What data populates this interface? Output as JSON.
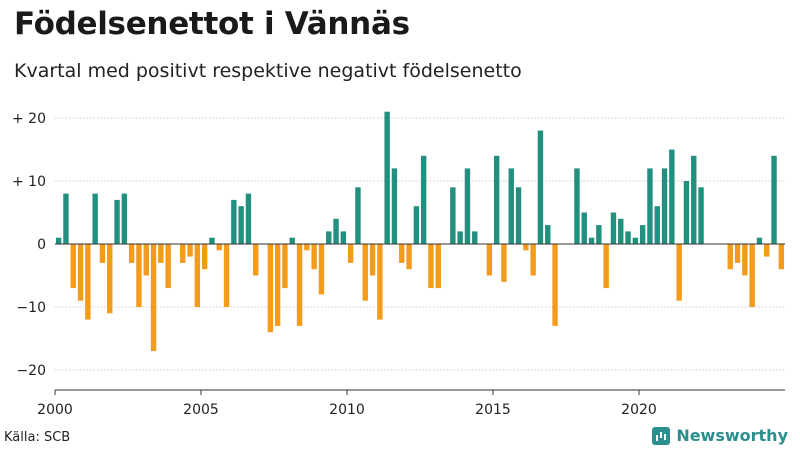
{
  "title": "Födelsenettot i Vännäs",
  "subtitle": "Kvartal med positivt respektive negativt födelsenetto",
  "source": "Källa: SCB",
  "brand": {
    "name": "Newsworthy",
    "icon": "bar-chart-icon"
  },
  "colors": {
    "positive": "#21907f",
    "negative": "#f39c1c",
    "axis": "#333333",
    "grid": "#cccccc"
  },
  "chart_data": {
    "type": "bar",
    "title": "Födelsenettot i Vännäs",
    "subtitle": "Kvartal med positivt respektive negativt födelsenetto",
    "x_start": 2000,
    "x_ticks": [
      "2000",
      "2005",
      "2010",
      "2015",
      "2020"
    ],
    "y_ticks": [
      {
        "value": 20,
        "label": "+ 20"
      },
      {
        "value": 10,
        "label": "+ 10"
      },
      {
        "value": 0,
        "label": "0"
      },
      {
        "value": -10,
        "label": "−10"
      },
      {
        "value": -20,
        "label": "−20"
      }
    ],
    "ylim": [
      -22,
      22
    ],
    "values": [
      1,
      8,
      -7,
      -9,
      -12,
      8,
      -3,
      -11,
      7,
      8,
      -3,
      -10,
      -5,
      -17,
      -3,
      -7,
      0,
      -3,
      -2,
      -10,
      -4,
      1,
      -1,
      -10,
      7,
      6,
      8,
      -5,
      0,
      -14,
      -13,
      -7,
      1,
      -13,
      -1,
      -4,
      -8,
      2,
      4,
      2,
      -3,
      9,
      -9,
      -5,
      -12,
      21,
      12,
      -3,
      -4,
      6,
      14,
      -7,
      -7,
      0,
      9,
      2,
      12,
      2,
      0,
      -5,
      14,
      -6,
      12,
      9,
      -1,
      -5,
      18,
      3,
      -13,
      0,
      0,
      12,
      5,
      1,
      3,
      -7,
      5,
      4,
      2,
      1,
      3,
      12,
      6,
      12,
      15,
      -9,
      10,
      14,
      9,
      0,
      0,
      0,
      -4,
      -3,
      -5,
      -10,
      1,
      -2,
      14,
      -4
    ]
  }
}
